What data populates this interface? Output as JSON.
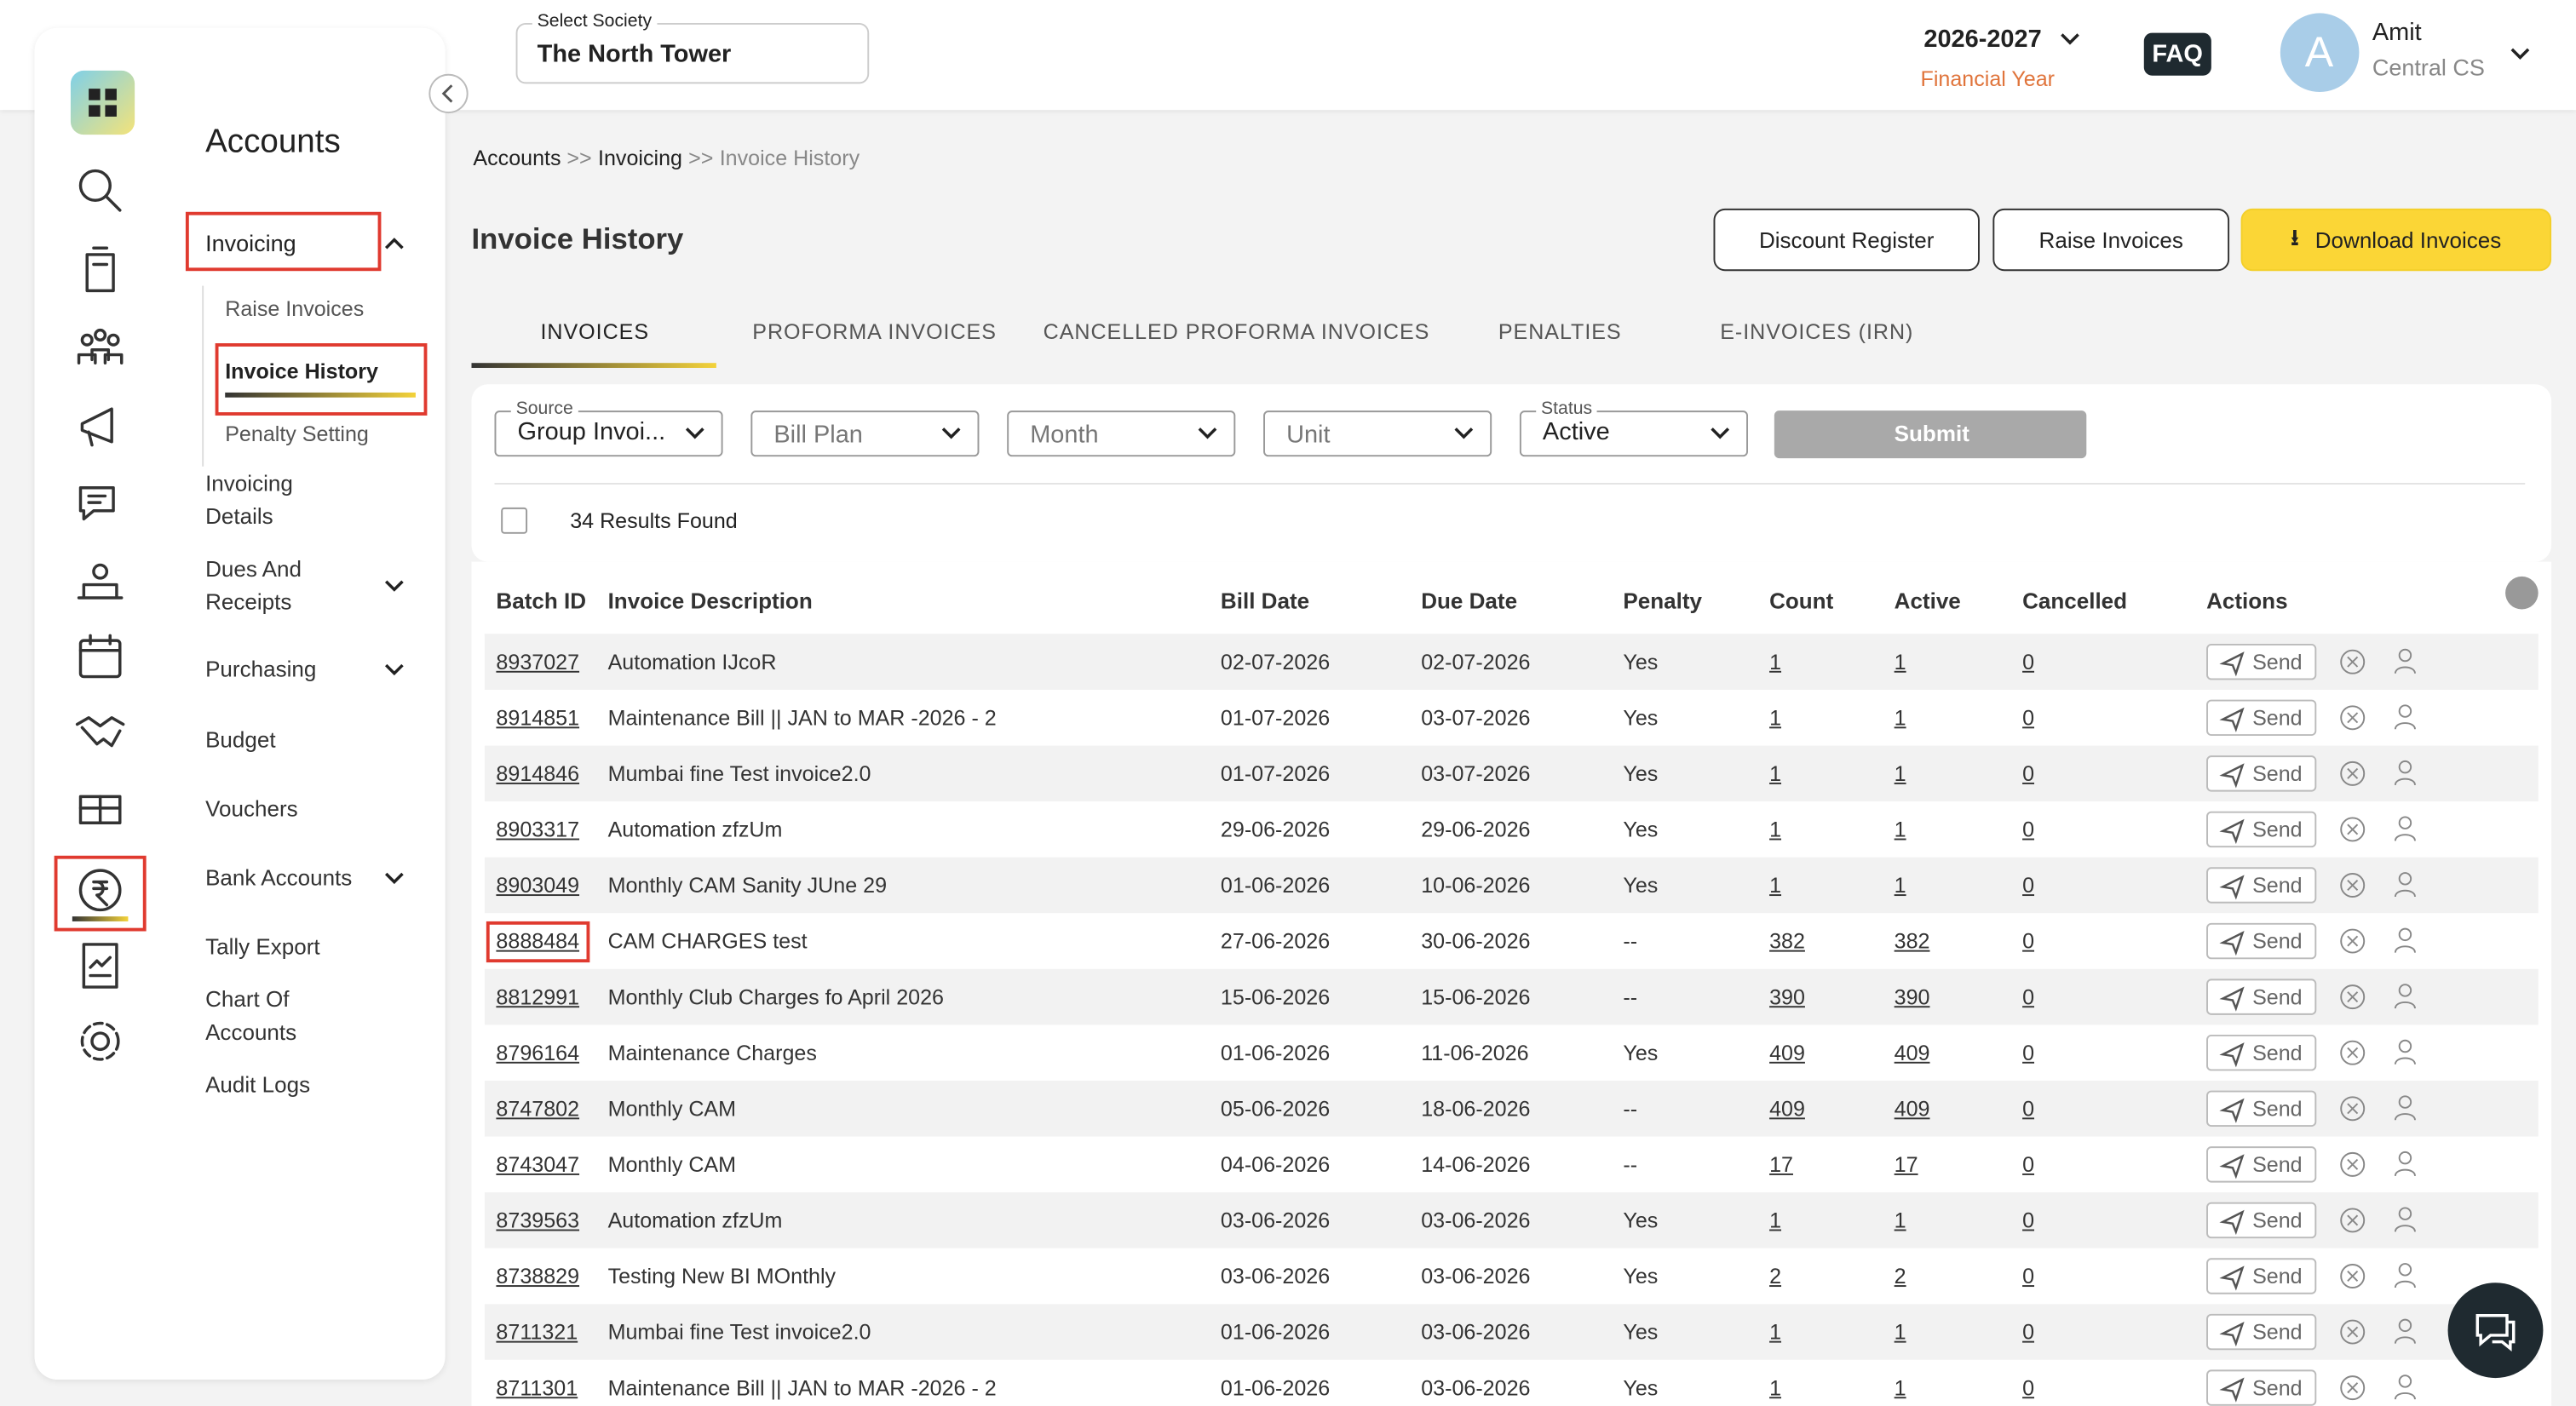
{
  "header": {
    "society_label": "Select Society",
    "society": "The North Tower",
    "year": "2026-2027",
    "year_label": "Financial Year",
    "faq": "FAQ",
    "avatar": "A",
    "user_name": "Amit",
    "user_role": "Central CS"
  },
  "sidebar": {
    "title": "Accounts",
    "invoicing": {
      "label": "Invoicing",
      "submenu": [
        "Raise Invoices",
        "Invoice History",
        "Penalty Setting"
      ]
    },
    "menu": [
      {
        "label": "Invoicing Details",
        "expandable": false
      },
      {
        "label": "Dues And Receipts",
        "expandable": true
      },
      {
        "label": "Purchasing",
        "expandable": true
      },
      {
        "label": "Budget",
        "expandable": false
      },
      {
        "label": "Vouchers",
        "expandable": false
      },
      {
        "label": "Bank Accounts",
        "expandable": true
      },
      {
        "label": "Tally Export",
        "expandable": false
      },
      {
        "label": "Chart Of Accounts",
        "expandable": false
      },
      {
        "label": "Audit Logs",
        "expandable": false
      }
    ]
  },
  "breadcrumb": {
    "items": [
      "Accounts",
      "Invoicing",
      "Invoice History"
    ],
    "separator": ">>"
  },
  "page": {
    "title": "Invoice History",
    "buttons": [
      "Discount Register",
      "Raise Invoices",
      "Download Invoices"
    ]
  },
  "tabs": [
    "INVOICES",
    "PROFORMA INVOICES",
    "CANCELLED PROFORMA INVOICES",
    "PENALTIES",
    "E-INVOICES (IRN)"
  ],
  "filters": [
    {
      "label": "Source",
      "value": "Group Invoi..."
    },
    {
      "placeholder": "Bill Plan"
    },
    {
      "placeholder": "Month"
    },
    {
      "placeholder": "Unit"
    },
    {
      "label": "Status",
      "value": "Active"
    }
  ],
  "submit": "Submit",
  "results": "34 Results Found",
  "table": {
    "columns": [
      "Batch ID",
      "Invoice Description",
      "Bill Date",
      "Due Date",
      "Penalty",
      "Count",
      "Active",
      "Cancelled",
      "Actions"
    ],
    "action_label": "Send",
    "rows": [
      [
        "8937027",
        "Automation IJcoR",
        "02-07-2026",
        "02-07-2026",
        "Yes",
        "1",
        "1",
        "0"
      ],
      [
        "8914851",
        "Maintenance Bill || JAN to MAR -2026 - 2",
        "01-07-2026",
        "03-07-2026",
        "Yes",
        "1",
        "1",
        "0"
      ],
      [
        "8914846",
        "Mumbai fine Test invoice2.0",
        "01-07-2026",
        "03-07-2026",
        "Yes",
        "1",
        "1",
        "0"
      ],
      [
        "8903317",
        "Automation zfzUm",
        "29-06-2026",
        "29-06-2026",
        "Yes",
        "1",
        "1",
        "0"
      ],
      [
        "8903049",
        "Monthly CAM Sanity JUne 29",
        "01-06-2026",
        "10-06-2026",
        "Yes",
        "1",
        "1",
        "0"
      ],
      [
        "8888484",
        "CAM CHARGES test",
        "27-06-2026",
        "30-06-2026",
        "--",
        "382",
        "382",
        "0"
      ],
      [
        "8812991",
        "Monthly Club Charges fo April 2026",
        "15-06-2026",
        "15-06-2026",
        "--",
        "390",
        "390",
        "0"
      ],
      [
        "8796164",
        "Maintenance Charges",
        "01-06-2026",
        "11-06-2026",
        "Yes",
        "409",
        "409",
        "0"
      ],
      [
        "8747802",
        "Monthly CAM",
        "05-06-2026",
        "18-06-2026",
        "--",
        "409",
        "409",
        "0"
      ],
      [
        "8743047",
        "Monthly CAM",
        "04-06-2026",
        "14-06-2026",
        "--",
        "17",
        "17",
        "0"
      ],
      [
        "8739563",
        "Automation zfzUm",
        "03-06-2026",
        "03-06-2026",
        "Yes",
        "1",
        "1",
        "0"
      ],
      [
        "8738829",
        "Testing New BI MOnthly",
        "03-06-2026",
        "03-06-2026",
        "Yes",
        "2",
        "2",
        "0"
      ],
      [
        "8711321",
        "Mumbai fine Test invoice2.0",
        "01-06-2026",
        "03-06-2026",
        "Yes",
        "1",
        "1",
        "0"
      ],
      [
        "8711301",
        "Maintenance Bill || JAN to MAR -2026 - 2",
        "01-06-2026",
        "03-06-2026",
        "Yes",
        "1",
        "1",
        "0"
      ]
    ]
  }
}
